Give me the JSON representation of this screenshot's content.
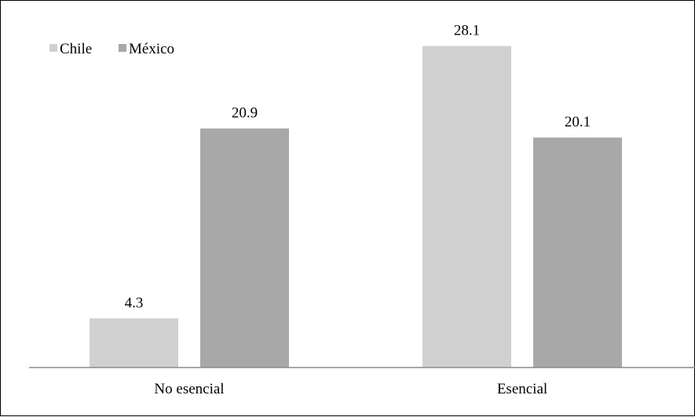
{
  "chart_data": {
    "type": "bar",
    "title": "",
    "xlabel": "",
    "ylabel": "",
    "categories": [
      "No esencial",
      "Esencial"
    ],
    "series": [
      {
        "name": "Chile",
        "values": [
          4.3,
          28.1
        ],
        "color": "#d0d0d0"
      },
      {
        "name": "México",
        "values": [
          20.9,
          20.1
        ],
        "color": "#a8a8a8"
      }
    ],
    "ylim": [
      0,
      30
    ],
    "grid": false,
    "axis_visible": false,
    "legend_position": "top-left",
    "data_labels": true
  }
}
